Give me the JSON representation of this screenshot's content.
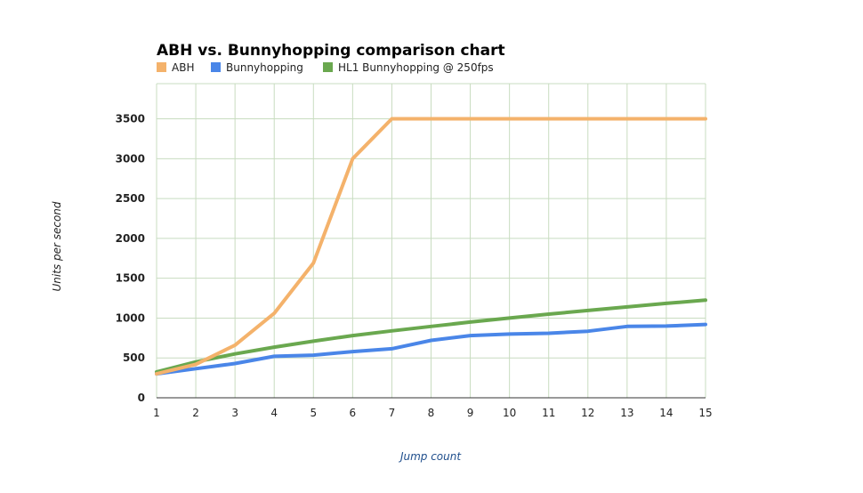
{
  "chart_data": {
    "type": "line",
    "title": "ABH vs. Bunnyhopping comparison chart",
    "xlabel": "Jump count",
    "ylabel": "Units per second",
    "x": [
      1,
      2,
      3,
      4,
      5,
      6,
      7,
      8,
      9,
      10,
      11,
      12,
      13,
      14,
      15
    ],
    "xlim": [
      1,
      15
    ],
    "ylim": [
      0,
      3500
    ],
    "yticks": [
      0,
      500,
      1000,
      1500,
      2000,
      2500,
      3000,
      3500
    ],
    "grid": true,
    "legend_position": "top-left",
    "series": [
      {
        "name": "ABH",
        "color": "#f4b26b",
        "values": [
          300,
          420,
          660,
          1060,
          1690,
          3000,
          3500,
          3500,
          3500,
          3500,
          3500,
          3500,
          3500,
          3500,
          3500
        ]
      },
      {
        "name": "Bunnyhopping",
        "color": "#4a86e8",
        "values": [
          300,
          365,
          430,
          520,
          535,
          580,
          615,
          720,
          780,
          800,
          810,
          835,
          895,
          900,
          920
        ]
      },
      {
        "name": "HL1 Bunnyhopping @ 250fps",
        "color": "#6aa84f",
        "values": [
          325,
          450,
          550,
          635,
          710,
          780,
          840,
          895,
          950,
          1000,
          1050,
          1095,
          1140,
          1185,
          1225
        ]
      }
    ]
  }
}
